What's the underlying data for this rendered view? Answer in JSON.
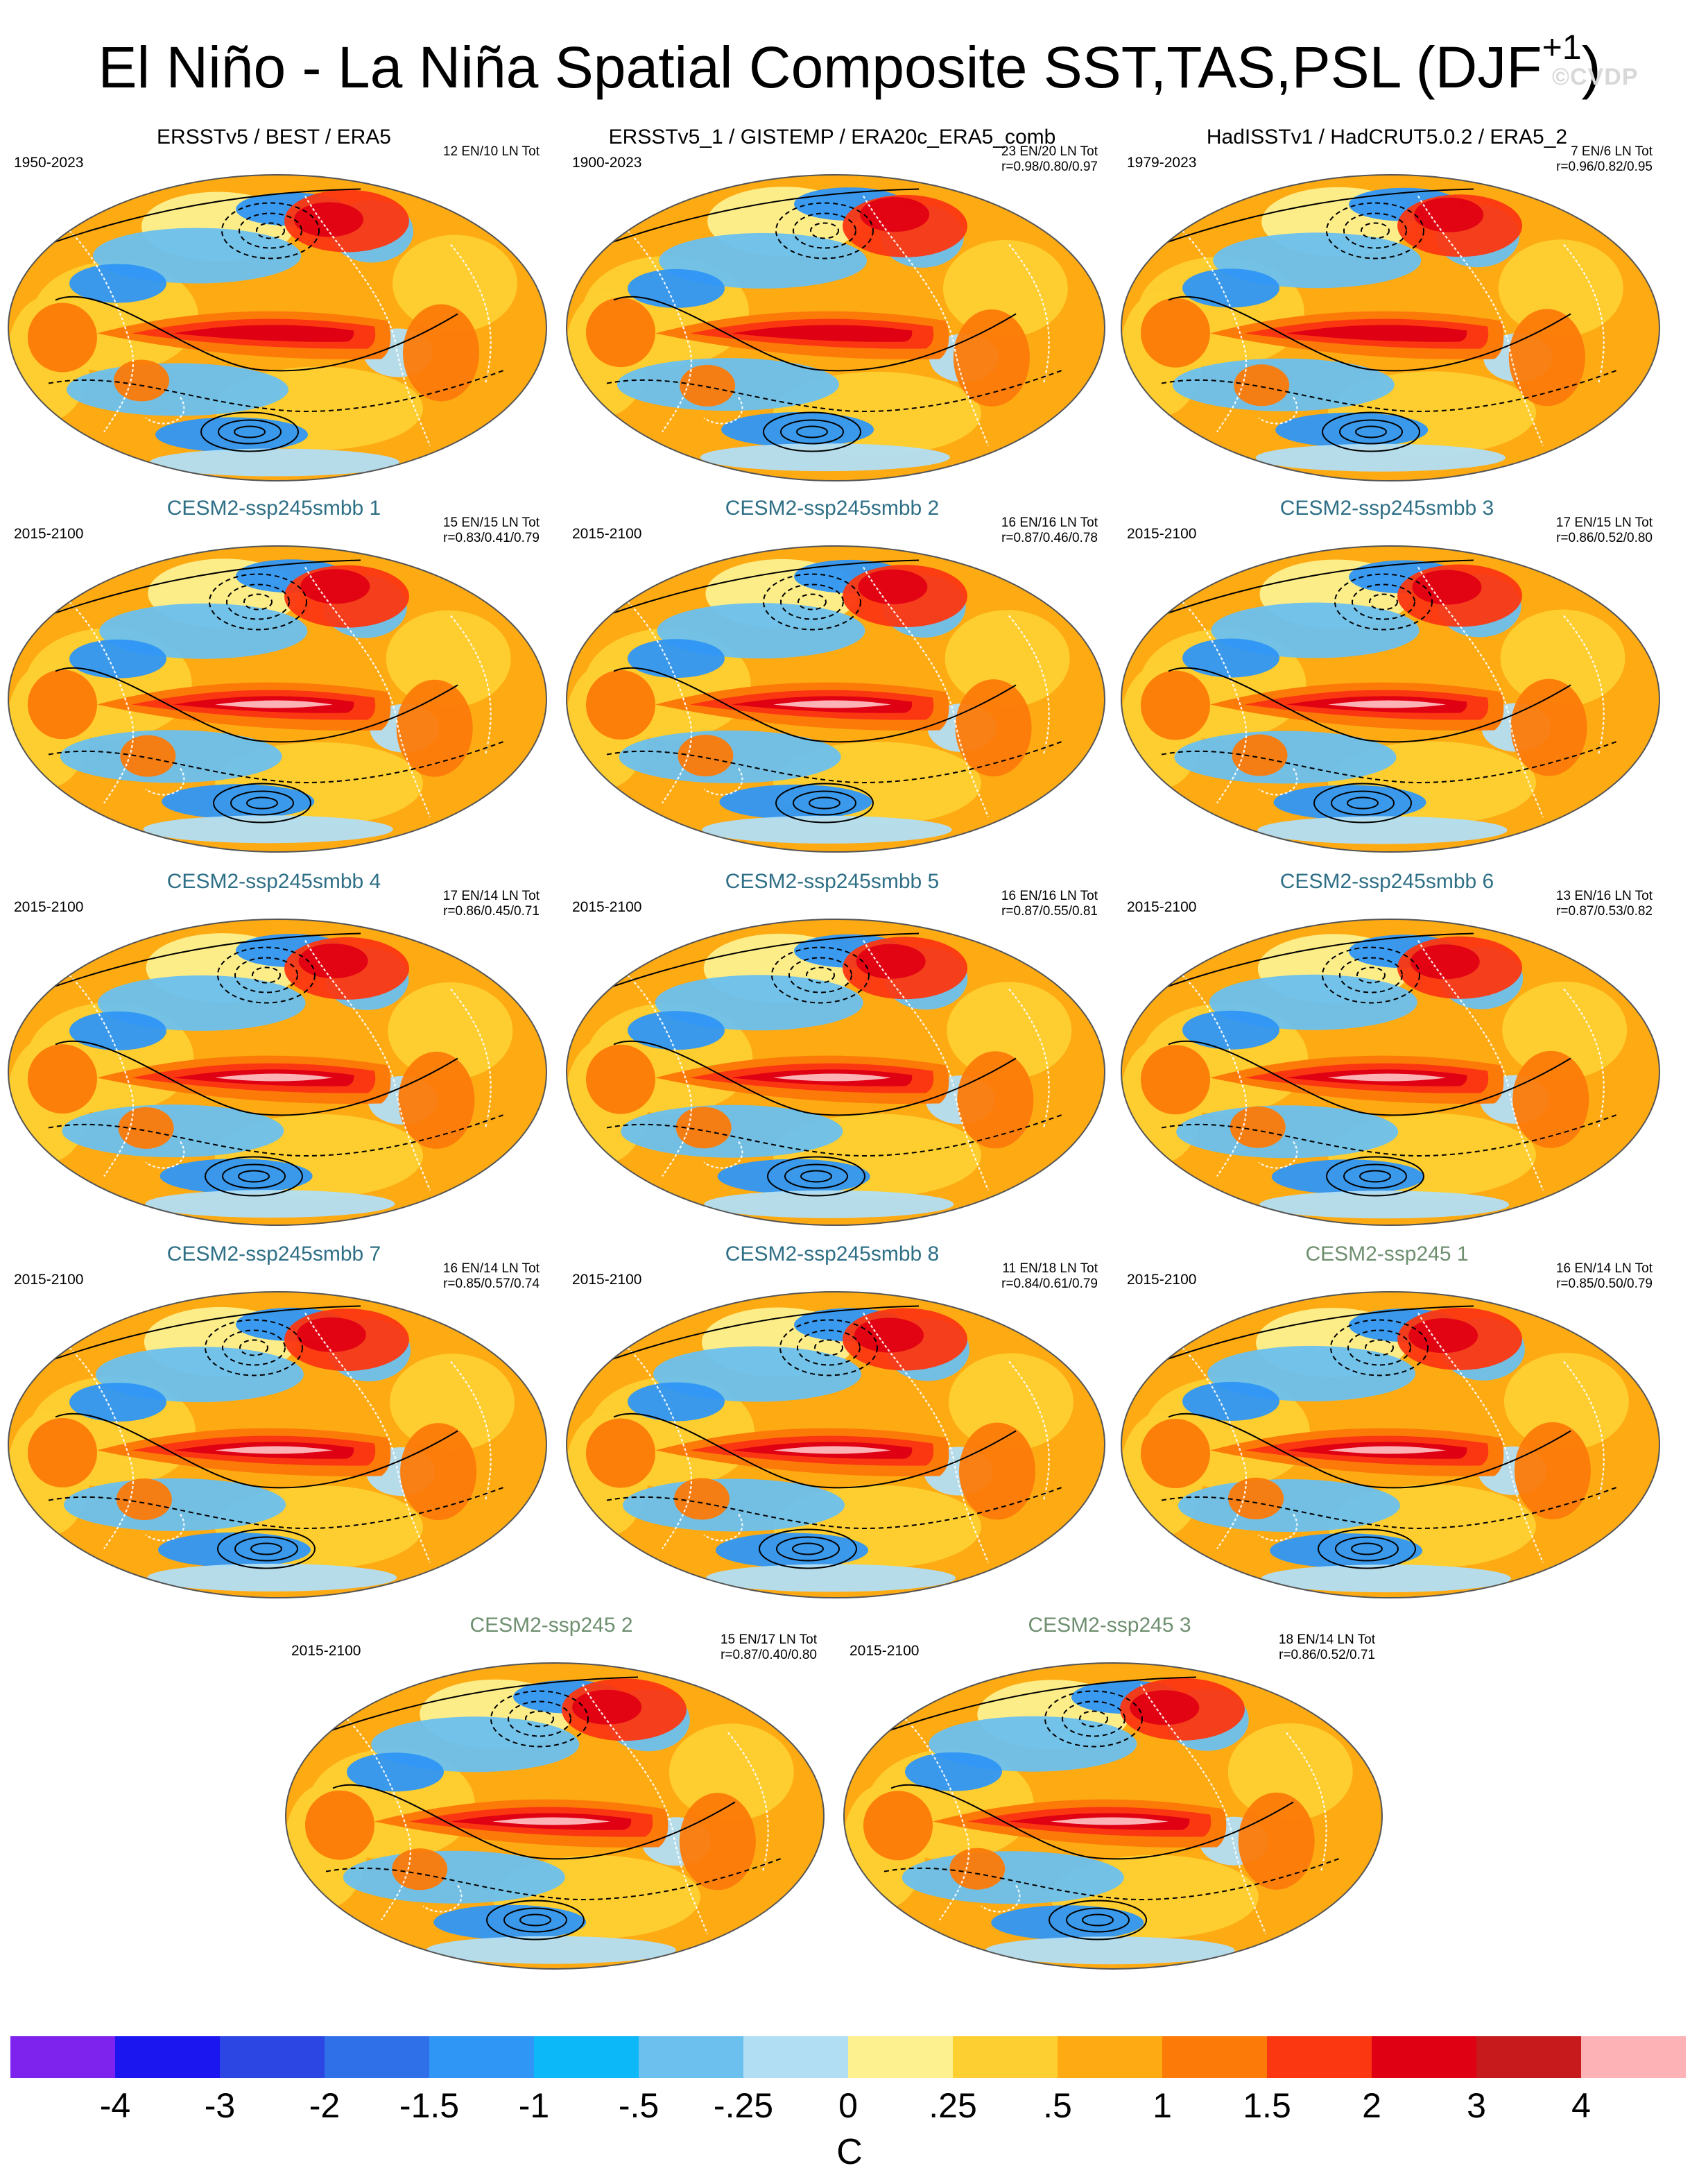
{
  "figure": {
    "title": "El Niño - La Niña Spatial Composite SST,TAS,PSL (DJF",
    "title_sup": "+1",
    "title_close": ")",
    "watermark": "©CVDP"
  },
  "panels": [
    {
      "title": "ERSSTv5 / BEST / ERA5",
      "kind": "obs",
      "period": "1950-2023",
      "stats_line1": "12 EN/10 LN Tot",
      "stats_line2": ""
    },
    {
      "title": "ERSSTv5_1 / GISTEMP / ERA20c_ERA5_comb",
      "kind": "obs",
      "period": "1900-2023",
      "stats_line1": "23 EN/20 LN Tot",
      "stats_line2": "r=0.98/0.80/0.97"
    },
    {
      "title": "HadISSTv1 / HadCRUT5.0.2 / ERA5_2",
      "kind": "obs",
      "period": "1979-2023",
      "stats_line1": "7 EN/6 LN Tot",
      "stats_line2": "r=0.96/0.82/0.95"
    },
    {
      "title": "CESM2-ssp245smbb 1",
      "kind": "smbb",
      "period": "2015-2100",
      "stats_line1": "15 EN/15 LN Tot",
      "stats_line2": "r=0.83/0.41/0.79"
    },
    {
      "title": "CESM2-ssp245smbb 2",
      "kind": "smbb",
      "period": "2015-2100",
      "stats_line1": "16 EN/16 LN Tot",
      "stats_line2": "r=0.87/0.46/0.78"
    },
    {
      "title": "CESM2-ssp245smbb 3",
      "kind": "smbb",
      "period": "2015-2100",
      "stats_line1": "17 EN/15 LN Tot",
      "stats_line2": "r=0.86/0.52/0.80"
    },
    {
      "title": "CESM2-ssp245smbb 4",
      "kind": "smbb",
      "period": "2015-2100",
      "stats_line1": "17 EN/14 LN Tot",
      "stats_line2": "r=0.86/0.45/0.71"
    },
    {
      "title": "CESM2-ssp245smbb 5",
      "kind": "smbb",
      "period": "2015-2100",
      "stats_line1": "16 EN/16 LN Tot",
      "stats_line2": "r=0.87/0.55/0.81"
    },
    {
      "title": "CESM2-ssp245smbb 6",
      "kind": "smbb",
      "period": "2015-2100",
      "stats_line1": "13 EN/16 LN Tot",
      "stats_line2": "r=0.87/0.53/0.82"
    },
    {
      "title": "CESM2-ssp245smbb 7",
      "kind": "smbb",
      "period": "2015-2100",
      "stats_line1": "16 EN/14 LN Tot",
      "stats_line2": "r=0.85/0.57/0.74"
    },
    {
      "title": "CESM2-ssp245smbb 8",
      "kind": "smbb",
      "period": "2015-2100",
      "stats_line1": "11 EN/18 LN Tot",
      "stats_line2": "r=0.84/0.61/0.79"
    },
    {
      "title": "CESM2-ssp245 1",
      "kind": "ssp",
      "period": "2015-2100",
      "stats_line1": "16 EN/14 LN Tot",
      "stats_line2": "r=0.85/0.50/0.79"
    },
    {
      "title": "CESM2-ssp245 2",
      "kind": "ssp",
      "period": "2015-2100",
      "stats_line1": "15 EN/17 LN Tot",
      "stats_line2": "r=0.87/0.40/0.80"
    },
    {
      "title": "CESM2-ssp245 3",
      "kind": "ssp",
      "period": "2015-2100",
      "stats_line1": "18 EN/14 LN Tot",
      "stats_line2": "r=0.86/0.52/0.71"
    }
  ],
  "colorbar": {
    "colors": [
      "#7e22ee",
      "#1b16f0",
      "#2b46e3",
      "#2f6fe8",
      "#2f96f5",
      "#0db8f8",
      "#6cc0ee",
      "#b2def4",
      "#fdf08e",
      "#fecf30",
      "#fdaa13",
      "#fc7a08",
      "#fb3711",
      "#e00013",
      "#c61a1d",
      "#fdb3b6"
    ],
    "labels": [
      "-4",
      "-3",
      "-2",
      "-1.5",
      "-1",
      "-.5",
      "-.25",
      "0",
      ".25",
      ".5",
      "1",
      "1.5",
      "2",
      "3",
      "4"
    ],
    "unit": "C"
  }
}
